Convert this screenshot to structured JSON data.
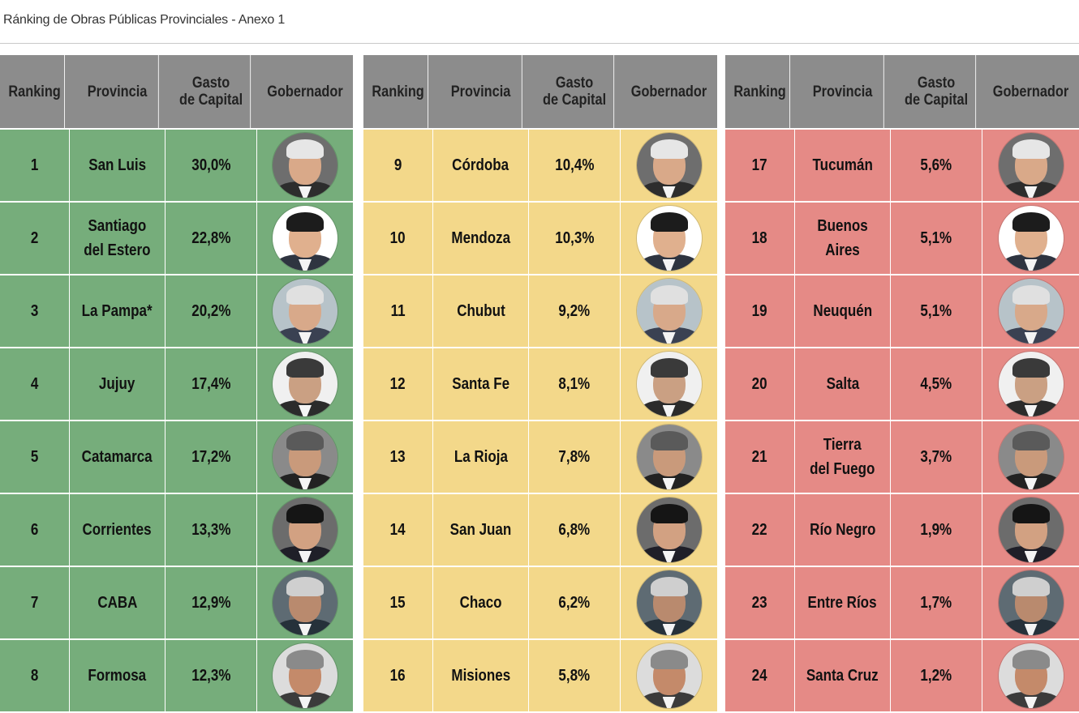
{
  "title": "Ránking de Obras Públicas Provinciales - Anexo 1",
  "headers": {
    "rank": "Ranking",
    "provincia": "Provincia",
    "gasto": "Gasto\nde Capital",
    "gobernador": "Gobernador"
  },
  "colors": {
    "green": "#76ad7b",
    "yellow": "#f3d88a",
    "red": "#e58a86",
    "header": "#8c8c8c"
  },
  "panels": [
    {
      "tier": "green",
      "rows": [
        {
          "rank": "1",
          "provincia": "San Luis",
          "gasto": "30,0%"
        },
        {
          "rank": "2",
          "provincia": "Santiago\ndel Estero",
          "gasto": "22,8%"
        },
        {
          "rank": "3",
          "provincia": "La Pampa*",
          "gasto": "20,2%"
        },
        {
          "rank": "4",
          "provincia": "Jujuy",
          "gasto": "17,4%"
        },
        {
          "rank": "5",
          "provincia": "Catamarca",
          "gasto": "17,2%"
        },
        {
          "rank": "6",
          "provincia": "Corrientes",
          "gasto": "13,3%"
        },
        {
          "rank": "7",
          "provincia": "CABA",
          "gasto": "12,9%"
        },
        {
          "rank": "8",
          "provincia": "Formosa",
          "gasto": "12,3%"
        }
      ]
    },
    {
      "tier": "yellow",
      "rows": [
        {
          "rank": "9",
          "provincia": "Córdoba",
          "gasto": "10,4%"
        },
        {
          "rank": "10",
          "provincia": "Mendoza",
          "gasto": "10,3%"
        },
        {
          "rank": "11",
          "provincia": "Chubut",
          "gasto": "9,2%"
        },
        {
          "rank": "12",
          "provincia": "Santa Fe",
          "gasto": "8,1%"
        },
        {
          "rank": "13",
          "provincia": "La Rioja",
          "gasto": "7,8%"
        },
        {
          "rank": "14",
          "provincia": "San Juan",
          "gasto": "6,8%"
        },
        {
          "rank": "15",
          "provincia": "Chaco",
          "gasto": "6,2%"
        },
        {
          "rank": "16",
          "provincia": "Misiones",
          "gasto": "5,8%"
        }
      ]
    },
    {
      "tier": "red",
      "rows": [
        {
          "rank": "17",
          "provincia": "Tucumán",
          "gasto": "5,6%"
        },
        {
          "rank": "18",
          "provincia": "Buenos Aires",
          "gasto": "5,1%"
        },
        {
          "rank": "19",
          "provincia": "Neuquén",
          "gasto": "5,1%"
        },
        {
          "rank": "20",
          "provincia": "Salta",
          "gasto": "4,5%"
        },
        {
          "rank": "21",
          "provincia": "Tierra\ndel Fuego",
          "gasto": "3,7%"
        },
        {
          "rank": "22",
          "provincia": "Río Negro",
          "gasto": "1,9%"
        },
        {
          "rank": "23",
          "provincia": "Entre Ríos",
          "gasto": "1,7%"
        },
        {
          "rank": "24",
          "provincia": "Santa Cruz",
          "gasto": "1,2%"
        }
      ]
    }
  ]
}
